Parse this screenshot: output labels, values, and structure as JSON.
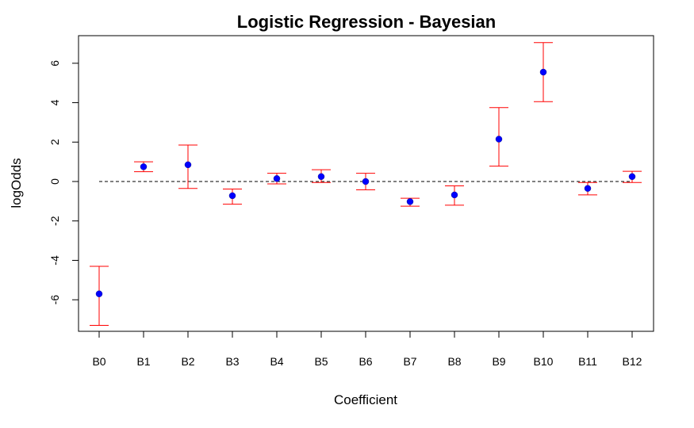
{
  "chart_data": {
    "type": "scatter",
    "title": "Logistic Regression - Bayesian",
    "xlabel": "Coefficient",
    "ylabel": "logOdds",
    "categories": [
      "B0",
      "B1",
      "B2",
      "B3",
      "B4",
      "B5",
      "B6",
      "B7",
      "B8",
      "B9",
      "B10",
      "B11",
      "B12"
    ],
    "series": [
      {
        "values": [
          -5.7,
          0.75,
          0.85,
          -0.72,
          0.15,
          0.25,
          0.0,
          -1.02,
          -0.68,
          2.15,
          5.55,
          -0.35,
          0.25
        ],
        "lower": [
          -7.3,
          0.5,
          -0.35,
          -1.15,
          -0.12,
          -0.05,
          -0.42,
          -1.25,
          -1.2,
          0.78,
          4.05,
          -0.68,
          -0.05
        ],
        "upper": [
          -4.3,
          1.0,
          1.85,
          -0.38,
          0.42,
          0.6,
          0.42,
          -0.85,
          -0.22,
          3.75,
          7.05,
          -0.05,
          0.52
        ]
      }
    ],
    "yticks": [
      -6,
      -4,
      -2,
      0,
      2,
      4,
      6
    ],
    "ylim": [
      -7.6,
      7.4
    ],
    "reference_line": 0,
    "grid": false,
    "legend": "none",
    "colors": {
      "point": "#0000ff",
      "error_bar": "#ff0000",
      "reference_line": "#000000",
      "axis": "#000000"
    }
  }
}
